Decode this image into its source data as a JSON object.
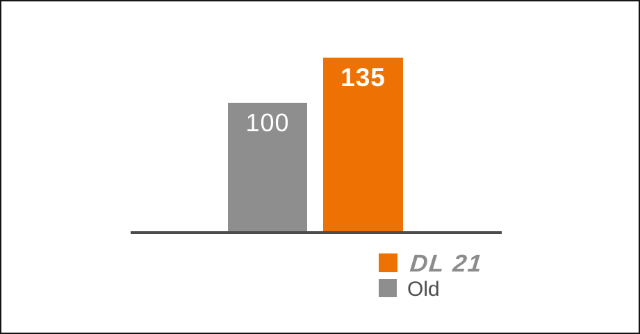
{
  "chart_data": {
    "type": "bar",
    "categories": [
      "Old",
      "DL 21"
    ],
    "series": [
      {
        "name": "Index value",
        "values": [
          100,
          135
        ],
        "colors": [
          "#8E8E8E",
          "#EE7203"
        ]
      }
    ],
    "title": "",
    "xlabel": "",
    "ylabel": "",
    "ylim": [
      0,
      140
    ],
    "grid": false,
    "axes_shown": [
      "baseline-only"
    ],
    "value_labels_inside_bars": true,
    "legend_position": "bottom-right",
    "legend": [
      {
        "label": "DL 21",
        "color": "#EE7203"
      },
      {
        "label": "Old",
        "color": "#8E8E8E"
      }
    ]
  },
  "colors": {
    "bar_old": "#8E8E8E",
    "bar_dl21": "#EE7203",
    "axis_line": "#4B4B4B",
    "bar_value_text": "#FFFFFF",
    "legend_dl21_text": "#8C8C8C",
    "legend_old_text": "#4D4D4D",
    "background": "#FFFFFF",
    "frame_border": "#141414"
  }
}
